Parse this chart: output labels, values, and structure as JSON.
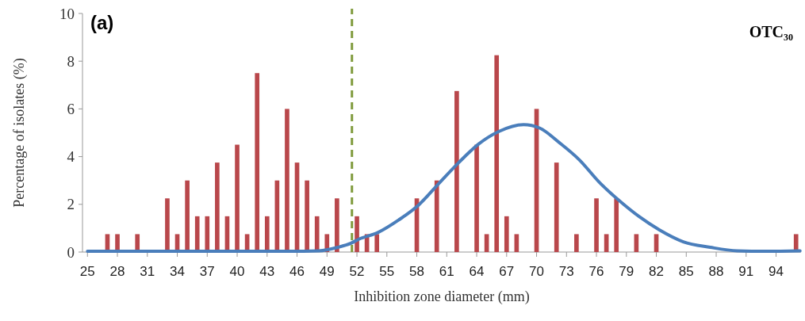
{
  "chart_data": {
    "type": "bar",
    "title": "(a)",
    "xlabel": "Inhibition zone diameter (mm)",
    "ylabel": "Percentage of isolates (%)",
    "annotations": [
      "OTC₃₀"
    ],
    "xlim": [
      24.5,
      96.5
    ],
    "xticks": [
      25,
      28,
      31,
      34,
      37,
      40,
      43,
      46,
      49,
      52,
      55,
      58,
      61,
      64,
      67,
      70,
      73,
      76,
      79,
      82,
      85,
      88,
      91,
      94
    ],
    "ylim": [
      0,
      10
    ],
    "yticks": [
      0,
      2,
      4,
      6,
      8,
      10
    ],
    "series": [
      {
        "color": "#b9474b",
        "x": [
          27,
          28,
          30,
          33,
          34,
          35,
          36,
          37,
          38,
          39,
          40,
          41,
          42,
          43,
          44,
          45,
          46,
          47,
          48,
          49,
          50,
          52,
          53,
          54,
          58,
          60,
          62,
          64,
          65,
          66,
          67,
          68,
          70,
          72,
          74,
          76,
          77,
          78,
          80,
          82,
          96
        ],
        "values": [
          0.75,
          0.75,
          0.75,
          2.25,
          0.75,
          3,
          1.5,
          1.5,
          3.75,
          1.5,
          4.5,
          0.75,
          7.5,
          1.5,
          3,
          6,
          3.75,
          3,
          1.5,
          0.75,
          2.25,
          1.5,
          0.75,
          0.75,
          2.25,
          3,
          6.75,
          4.5,
          0.75,
          8.25,
          1.5,
          0.75,
          6,
          3.75,
          0.75,
          2.25,
          0.75,
          2.25,
          0.75,
          0.75,
          0.75
        ]
      },
      {
        "type": "line",
        "color": "#4a7ebb",
        "x": [
          25,
          30,
          35,
          40,
          45,
          48.2,
          50.1,
          51.4,
          52.2,
          54.1,
          56.2,
          58.2,
          60.2,
          62.2,
          64.2,
          66.2,
          68.7,
          70.3,
          72.3,
          74.3,
          76.3,
          78.3,
          80.3,
          82.3,
          84.7,
          87.4,
          90.1,
          93,
          96.4
        ],
        "values": [
          0.03,
          0.03,
          0.03,
          0.03,
          0.03,
          0.05,
          0.2,
          0.37,
          0.54,
          0.82,
          1.35,
          1.98,
          2.87,
          3.75,
          4.53,
          5.05,
          5.34,
          5.2,
          4.58,
          3.86,
          2.92,
          2.15,
          1.48,
          0.93,
          0.43,
          0.2,
          0.05,
          0.03,
          0.05
        ]
      }
    ],
    "ref_lines": [
      {
        "axis": "x",
        "value": 51.5,
        "color": "#7f9a3c",
        "line_style": "dashed"
      }
    ]
  }
}
